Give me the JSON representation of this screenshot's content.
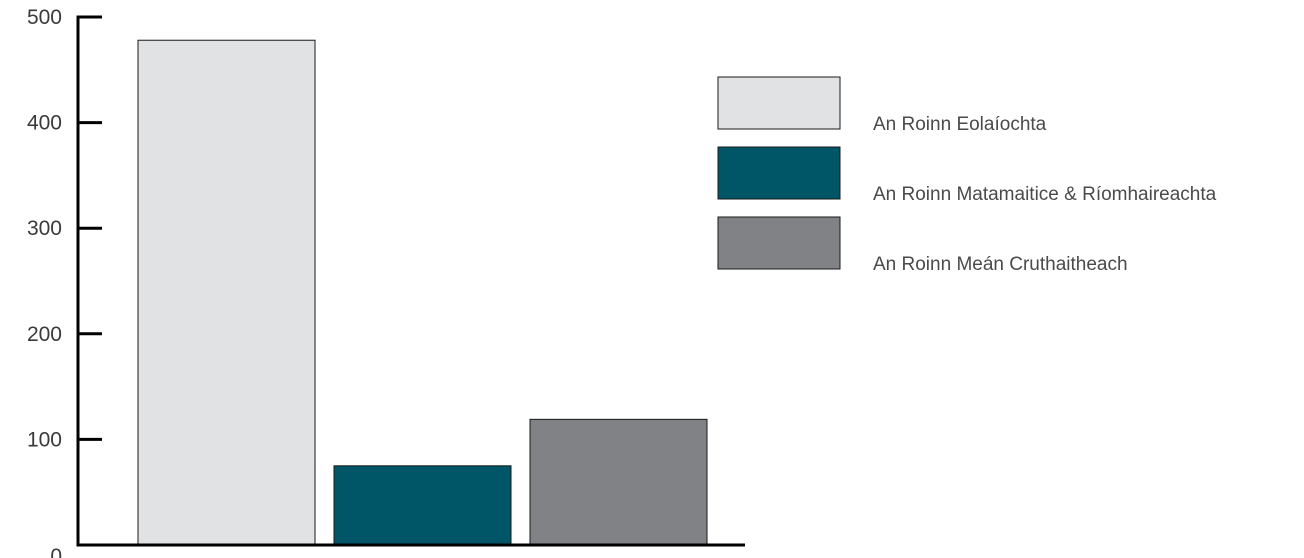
{
  "chart_data": {
    "type": "bar",
    "categories": [
      "An Roinn Eolaíochta",
      "An Roinn Matamaitice & Ríomhaireachta",
      "An Roinn Meán Cruthaitheach"
    ],
    "values": [
      478,
      75,
      119
    ],
    "colors": [
      "#e1e2e4",
      "#005567",
      "#808285"
    ],
    "ylim": [
      0,
      500
    ],
    "yticks": [
      0,
      100,
      200,
      300,
      400,
      500
    ],
    "ytick_labels": [
      "0",
      "100",
      "200",
      "300",
      "400",
      "500"
    ],
    "title": "",
    "xlabel": "",
    "ylabel": "",
    "grid": false,
    "legend_position": "top-right",
    "legend": [
      {
        "label": "An Roinn Eolaíochta",
        "color": "#e1e2e4"
      },
      {
        "label": "An Roinn Matamaitice & Ríomhaireachta",
        "color": "#005567"
      },
      {
        "label": "An Roinn Meán Cruthaitheach",
        "color": "#808285"
      }
    ]
  }
}
